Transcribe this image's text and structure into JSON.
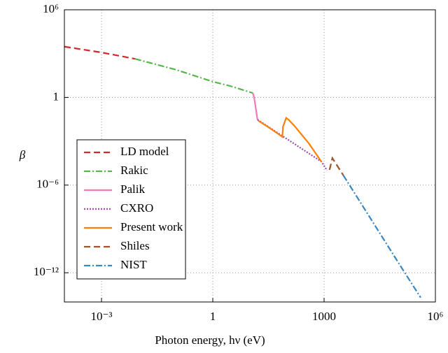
{
  "chart_data": {
    "type": "line",
    "xlabel": "Photon energy, hν (eV)",
    "ylabel": "β",
    "xscale": "log",
    "yscale": "log",
    "grid": true,
    "legend": "lower left",
    "xlim": [
      0.0001,
      1000000
    ],
    "ylim": [
      1e-14,
      1000000
    ],
    "xticks": [
      {
        "value": 0.001,
        "label": "10⁻³"
      },
      1,
      1000,
      {
        "value": 1000000,
        "label": "10⁶"
      }
    ],
    "yticks": [
      {
        "value": 1e-12,
        "label": "10⁻¹²"
      },
      {
        "value": 1e-06,
        "label": "10⁻⁶"
      },
      1,
      {
        "value": 1000000,
        "label": "10⁶"
      }
    ],
    "series": [
      {
        "name": "LD model",
        "color": "#d62728",
        "linestyle": "dashed",
        "x": [
          0.0001,
          0.001,
          0.008
        ],
        "values": [
          3000,
          1200,
          440
        ]
      },
      {
        "name": "Rakic",
        "color": "#55b748",
        "linestyle": "dashdot",
        "x": [
          0.008,
          0.1,
          1,
          3,
          12
        ],
        "values": [
          440,
          80,
          12,
          6,
          2
        ]
      },
      {
        "name": "Palik",
        "color": "#f07ab5",
        "linestyle": "solid",
        "x": [
          12,
          13,
          14,
          16
        ],
        "values": [
          2,
          1,
          0.3,
          0.03
        ]
      },
      {
        "name": "CXRO",
        "color": "#9b4fa6",
        "linestyle": "dotted",
        "x": [
          16,
          18,
          850,
          1200
        ],
        "values": [
          0.03,
          0.025,
          4e-05,
          1e-05
        ]
      },
      {
        "name": "Present work",
        "color": "#ff7f0e",
        "linestyle": "solid",
        "x": [
          17,
          30,
          60,
          75,
          78,
          95,
          110,
          160,
          390,
          850
        ],
        "values": [
          0.025,
          0.01,
          0.003,
          0.002,
          0.01,
          0.04,
          0.03,
          0.011,
          0.0007,
          4e-05
        ]
      },
      {
        "name": "Shiles",
        "color": "#a0522d",
        "linestyle": "dashed",
        "x": [
          1400,
          1670,
          3300
        ],
        "values": [
          1.1e-05,
          7e-05,
          4.7e-06
        ]
      },
      {
        "name": "NIST",
        "color": "#3a87c0",
        "linestyle": "dashdot",
        "x": [
          3300,
          100000,
          400000
        ],
        "values": [
          4.7e-06,
          5e-12,
          2e-14
        ]
      }
    ]
  }
}
